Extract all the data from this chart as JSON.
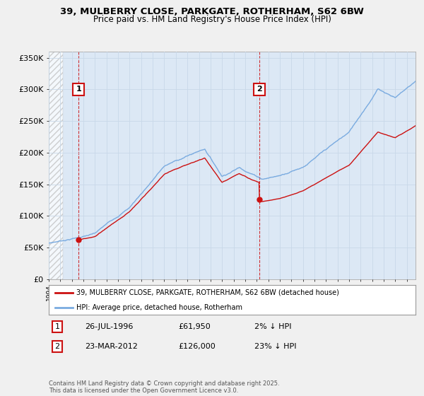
{
  "title_line1": "39, MULBERRY CLOSE, PARKGATE, ROTHERHAM, S62 6BW",
  "title_line2": "Price paid vs. HM Land Registry's House Price Index (HPI)",
  "ylim": [
    0,
    360000
  ],
  "yticks": [
    0,
    50000,
    100000,
    150000,
    200000,
    250000,
    300000,
    350000
  ],
  "ytick_labels": [
    "£0",
    "£50K",
    "£100K",
    "£150K",
    "£200K",
    "£250K",
    "£300K",
    "£350K"
  ],
  "background_color": "#f0f0f0",
  "plot_background": "#dce8f5",
  "hpi_color": "#7aabe0",
  "price_color": "#cc1111",
  "sale1_date": "26-JUL-1996",
  "sale1_price": 61950,
  "sale1_hpi_pct": "2% ↓ HPI",
  "sale2_date": "23-MAR-2012",
  "sale2_price": 126000,
  "sale2_hpi_pct": "23% ↓ HPI",
  "legend_line1": "39, MULBERRY CLOSE, PARKGATE, ROTHERHAM, S62 6BW (detached house)",
  "legend_line2": "HPI: Average price, detached house, Rotherham",
  "footnote": "Contains HM Land Registry data © Crown copyright and database right 2025.\nThis data is licensed under the Open Government Licence v3.0.",
  "vline1_x": 1996.58,
  "vline2_x": 2012.23,
  "grid_color": "#c8d8e8",
  "xlim_start": 1994.0,
  "xlim_end": 2025.75
}
